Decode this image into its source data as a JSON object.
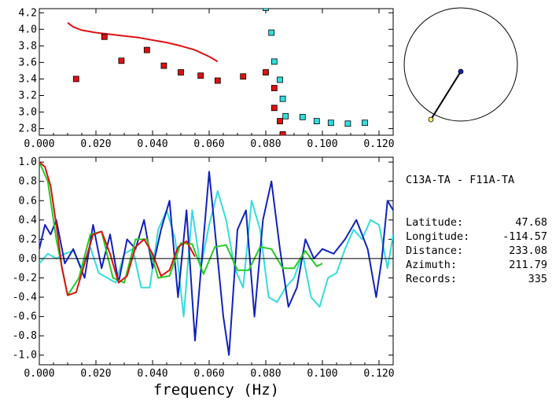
{
  "station_pair": "C13A-TA - F11A-TA",
  "info": [
    {
      "key": "Latitude:",
      "value": "47.68"
    },
    {
      "key": "Longitude:",
      "value": "-114.57"
    },
    {
      "key": "Distance:",
      "value": "233.08"
    },
    {
      "key": "Azimuth:",
      "value": "211.79"
    },
    {
      "key": "Records:",
      "value": "335"
    }
  ],
  "colors": {
    "red": "#dd1111",
    "cyan": "#33dddd",
    "blue": "#1122bb",
    "green": "#22cc22",
    "black": "#000000"
  },
  "chart_data": [
    {
      "type": "scatter",
      "xlim": [
        0.0,
        0.125
      ],
      "ylim": [
        2.72,
        4.25
      ],
      "x_ticks": [
        "0.000",
        "0.020",
        "0.040",
        "0.060",
        "0.080",
        "0.100",
        "0.120"
      ],
      "y_ticks": [
        "2.8",
        "3.0",
        "3.2",
        "3.4",
        "3.6",
        "3.8",
        "4.0",
        "4.2"
      ],
      "series": [
        {
          "style": "line",
          "color": "red",
          "x": [
            0.01,
            0.012,
            0.015,
            0.02,
            0.025,
            0.03,
            0.035,
            0.04,
            0.045,
            0.05,
            0.055,
            0.06,
            0.063
          ],
          "y": [
            4.08,
            4.03,
            3.99,
            3.96,
            3.94,
            3.92,
            3.9,
            3.87,
            3.84,
            3.8,
            3.75,
            3.67,
            3.61
          ]
        },
        {
          "style": "markers",
          "color": "red",
          "x": [
            0.013,
            0.023,
            0.029,
            0.038,
            0.044,
            0.05,
            0.057,
            0.063,
            0.072,
            0.08,
            0.083,
            0.083,
            0.085,
            0.086
          ],
          "y": [
            3.4,
            3.91,
            3.62,
            3.75,
            3.56,
            3.48,
            3.44,
            3.38,
            3.43,
            3.48,
            3.29,
            3.05,
            2.89,
            2.73
          ]
        },
        {
          "style": "markers",
          "color": "cyan",
          "x": [
            0.08,
            0.082,
            0.083,
            0.085,
            0.086,
            0.087,
            0.093,
            0.098,
            0.103,
            0.109,
            0.115
          ],
          "y": [
            4.26,
            3.96,
            3.61,
            3.39,
            3.16,
            2.95,
            2.94,
            2.89,
            2.87,
            2.86,
            2.87
          ]
        }
      ]
    },
    {
      "type": "line",
      "xlim": [
        0.0,
        0.125
      ],
      "ylim": [
        -1.1,
        1.05
      ],
      "xlabel": "frequency (Hz)",
      "x_ticks": [
        "0.000",
        "0.020",
        "0.040",
        "0.060",
        "0.080",
        "0.100",
        "0.120"
      ],
      "y_ticks": [
        "-1.0",
        "-0.8",
        "-0.6",
        "-0.4",
        "-0.2",
        "0.0",
        "0.2",
        "0.4",
        "0.6",
        "0.8",
        "1.0"
      ],
      "series": [
        {
          "color": "cyan",
          "x": [
            0.0,
            0.003,
            0.006,
            0.009,
            0.012,
            0.015,
            0.018,
            0.021,
            0.024,
            0.027,
            0.03,
            0.033,
            0.036,
            0.039,
            0.042,
            0.045,
            0.048,
            0.051,
            0.054,
            0.057,
            0.06,
            0.063,
            0.066,
            0.069,
            0.072,
            0.075,
            0.078,
            0.081,
            0.084,
            0.087,
            0.09,
            0.093,
            0.096,
            0.099,
            0.102,
            0.105,
            0.108,
            0.111,
            0.114,
            0.117,
            0.12,
            0.123,
            0.125
          ],
          "y": [
            -0.05,
            0.05,
            0.0,
            0.05,
            0.08,
            -0.1,
            0.12,
            -0.15,
            -0.2,
            -0.25,
            0.05,
            0.1,
            -0.3,
            -0.3,
            0.3,
            0.5,
            0.2,
            -0.6,
            0.5,
            -0.1,
            0.35,
            0.7,
            0.4,
            -0.1,
            -0.3,
            0.6,
            0.3,
            -0.4,
            -0.45,
            -0.3,
            -0.2,
            0.05,
            -0.4,
            -0.5,
            -0.2,
            -0.15,
            0.1,
            0.3,
            0.2,
            0.4,
            0.35,
            -0.1,
            0.25
          ]
        },
        {
          "color": "blue",
          "x": [
            0.0,
            0.002,
            0.004,
            0.006,
            0.009,
            0.012,
            0.016,
            0.019,
            0.022,
            0.025,
            0.028,
            0.031,
            0.034,
            0.037,
            0.04,
            0.043,
            0.046,
            0.049,
            0.052,
            0.055,
            0.058,
            0.06,
            0.062,
            0.065,
            0.067,
            0.07,
            0.073,
            0.076,
            0.079,
            0.082,
            0.085,
            0.088,
            0.091,
            0.094,
            0.097,
            0.1,
            0.104,
            0.108,
            0.112,
            0.116,
            0.119,
            0.121,
            0.123,
            0.125
          ],
          "y": [
            0.1,
            0.35,
            0.25,
            0.4,
            -0.05,
            0.1,
            -0.2,
            0.35,
            -0.1,
            0.25,
            -0.25,
            0.2,
            0.1,
            0.4,
            -0.1,
            0.3,
            0.6,
            -0.4,
            0.5,
            -0.85,
            0.2,
            0.9,
            0.3,
            -0.6,
            -1.0,
            0.3,
            0.5,
            -0.6,
            0.4,
            0.8,
            0.1,
            -0.5,
            -0.3,
            0.2,
            0.0,
            0.1,
            0.05,
            0.2,
            0.4,
            0.1,
            -0.4,
            0.0,
            0.6,
            0.5
          ]
        },
        {
          "color": "green",
          "x": [
            0.0,
            0.003,
            0.006,
            0.01,
            0.014,
            0.018,
            0.022,
            0.026,
            0.03,
            0.034,
            0.038,
            0.042,
            0.046,
            0.05,
            0.054,
            0.058,
            0.062,
            0.066,
            0.07,
            0.074,
            0.078,
            0.082,
            0.086,
            0.09,
            0.094,
            0.098,
            0.1
          ],
          "y": [
            1.0,
            0.8,
            0.2,
            -0.38,
            -0.2,
            0.25,
            0.28,
            -0.2,
            -0.25,
            0.2,
            0.2,
            -0.2,
            -0.18,
            0.16,
            0.15,
            -0.16,
            0.12,
            0.14,
            -0.12,
            -0.12,
            0.12,
            0.1,
            -0.1,
            -0.1,
            0.08,
            -0.08,
            -0.05
          ]
        },
        {
          "color": "red",
          "x": [
            0.0,
            0.002,
            0.004,
            0.006,
            0.008,
            0.01,
            0.013,
            0.016,
            0.019,
            0.022,
            0.025,
            0.028,
            0.031,
            0.034,
            0.037,
            0.04,
            0.043,
            0.046,
            0.049,
            0.052,
            0.055
          ],
          "y": [
            1.0,
            0.95,
            0.75,
            0.35,
            -0.1,
            -0.38,
            -0.35,
            -0.05,
            0.25,
            0.28,
            0.05,
            -0.25,
            -0.18,
            0.12,
            0.2,
            0.05,
            -0.18,
            -0.12,
            0.12,
            0.18,
            0.02
          ]
        },
        {
          "color": "black",
          "x": [
            0.0,
            0.125
          ],
          "y": [
            0.0,
            0.0
          ]
        }
      ]
    }
  ],
  "compass": {
    "station_a": "blue dot",
    "station_b": "yellow dot"
  }
}
